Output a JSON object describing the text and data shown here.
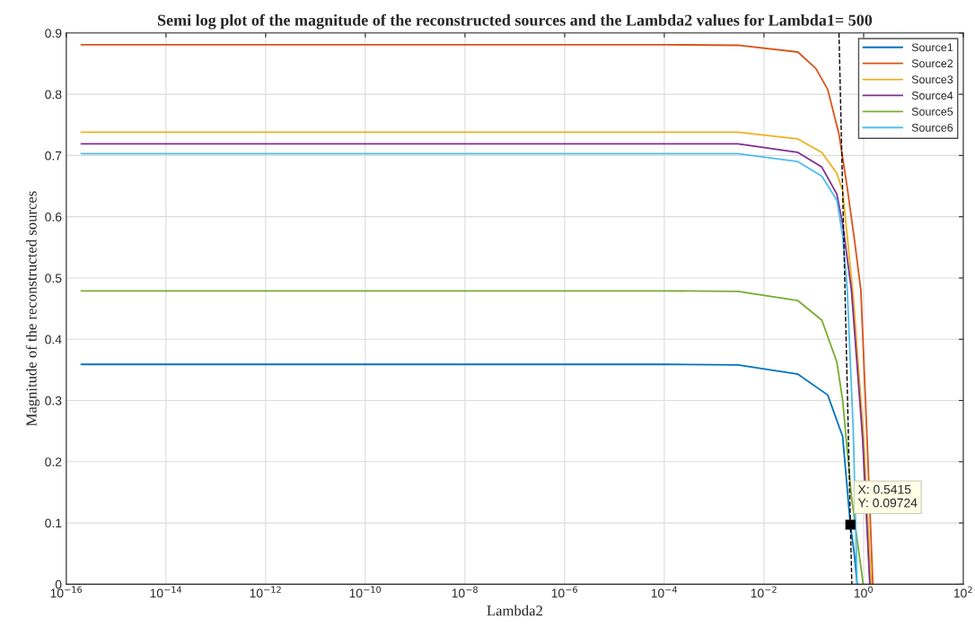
{
  "chart_data": {
    "type": "line",
    "title": "Semi log plot of the magnitude of the reconstructed sources and the Lambda2 values for Lambda1= 500",
    "xlabel": "Lambda2",
    "ylabel": "Magnitude of the reconstructed sources",
    "log": "x",
    "grid": true,
    "legend": "top right",
    "line_style": "solid",
    "marker": "none",
    "xlim": [
      1e-16,
      100
    ],
    "xticks": [
      {
        "value": 1e-16,
        "label": "10$^{−16}$"
      },
      {
        "value": 1e-14,
        "label": "10$^{−14}$"
      },
      {
        "value": 1e-12,
        "label": "10$^{−12}$"
      },
      {
        "value": 1e-10,
        "label": "10$^{−10}$"
      },
      {
        "value": 1e-08,
        "label": "10$^{−8}$"
      },
      {
        "value": 1e-06,
        "label": "10$^{−6}$"
      },
      {
        "value": 0.0001,
        "label": "10$^{−4}$"
      },
      {
        "value": 0.01,
        "label": "10$^{−2}$"
      },
      {
        "value": 1,
        "label": "10$^{0}$"
      },
      {
        "value": 100,
        "label": "10$^{2}$"
      }
    ],
    "ylim": [
      0,
      0.9
    ],
    "yticks": [
      0,
      0.1,
      0.2,
      0.3,
      0.4,
      0.5,
      0.6,
      0.7,
      0.8,
      0.9
    ],
    "series": [
      {
        "name": "Source1",
        "color": "#0072bd",
        "x": [
          2e-16,
          0.0001,
          0.003,
          0.048,
          0.19,
          0.38,
          0.5415,
          0.65,
          0.74
        ],
        "values": [
          0.359,
          0.359,
          0.358,
          0.343,
          0.309,
          0.241,
          0.097,
          0.05,
          0
        ]
      },
      {
        "name": "Source2",
        "color": "#d95319",
        "x": [
          2e-16,
          0.0001,
          0.003,
          0.048,
          0.11,
          0.19,
          0.32,
          0.47,
          0.66,
          0.88,
          1.17,
          1.53
        ],
        "values": [
          0.881,
          0.881,
          0.88,
          0.869,
          0.842,
          0.808,
          0.735,
          0.647,
          0.56,
          0.48,
          0.24,
          0
        ]
      },
      {
        "name": "Source3",
        "color": "#edb120",
        "x": [
          2e-16,
          0.0001,
          0.003,
          0.048,
          0.145,
          0.29,
          0.38,
          0.62,
          1.0,
          1.42
        ],
        "values": [
          0.738,
          0.738,
          0.738,
          0.727,
          0.705,
          0.671,
          0.642,
          0.47,
          0.24,
          0
        ]
      },
      {
        "name": "Source4",
        "color": "#7e2f8e",
        "x": [
          2e-16,
          0.0001,
          0.003,
          0.048,
          0.145,
          0.29,
          0.38,
          0.57,
          0.95,
          1.33
        ],
        "values": [
          0.719,
          0.719,
          0.719,
          0.705,
          0.681,
          0.637,
          0.588,
          0.48,
          0.24,
          0
        ]
      },
      {
        "name": "Source5",
        "color": "#77ac30",
        "x": [
          2e-16,
          0.0001,
          0.003,
          0.048,
          0.145,
          0.29,
          0.38,
          0.57,
          0.75,
          0.98
        ],
        "values": [
          0.479,
          0.479,
          0.478,
          0.463,
          0.431,
          0.363,
          0.3,
          0.143,
          0.07,
          0
        ]
      },
      {
        "name": "Source6",
        "color": "#4dbeee",
        "x": [
          2e-16,
          0.0001,
          0.003,
          0.048,
          0.145,
          0.29,
          0.38,
          0.47,
          0.62,
          0.74
        ],
        "values": [
          0.703,
          0.703,
          0.703,
          0.69,
          0.666,
          0.627,
          0.569,
          0.48,
          0.25,
          0
        ]
      },
      {
        "color": "#000000",
        "line_style": "dashed",
        "x": [
          0.32,
          0.58
        ],
        "values": [
          0.9,
          0
        ]
      }
    ],
    "annotations": [
      {
        "text": "X: 0.5415\nY: 0.09724",
        "x": 0.5415,
        "y": 0.09724
      }
    ]
  }
}
